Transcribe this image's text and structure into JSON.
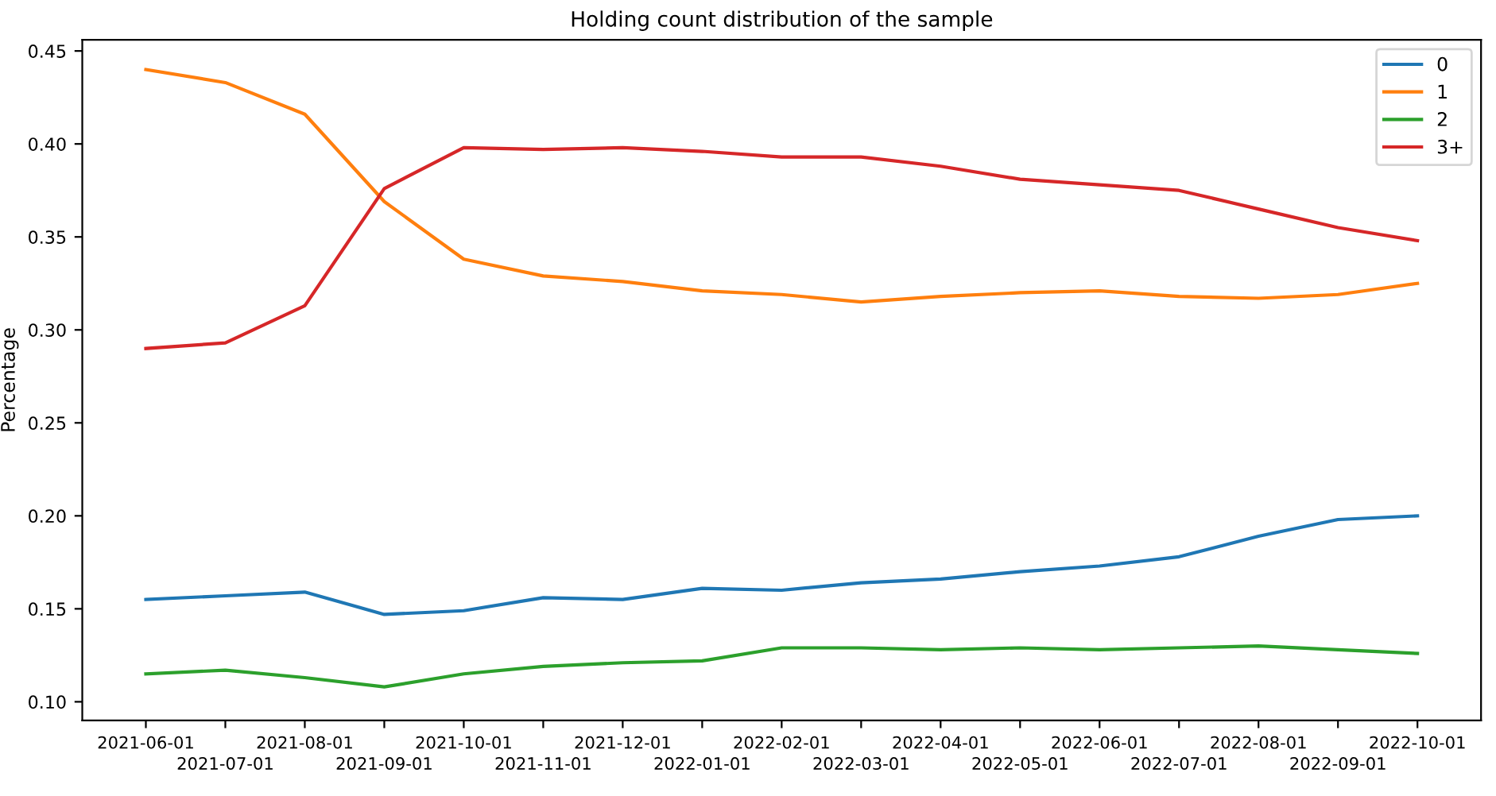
{
  "chart_data": {
    "type": "line",
    "title": "Holding count distribution of the sample",
    "ylabel": "Percentage",
    "categories": [
      "2021-06-01",
      "2021-07-01",
      "2021-08-01",
      "2021-09-01",
      "2021-10-01",
      "2021-11-01",
      "2021-12-01",
      "2022-01-01",
      "2022-02-01",
      "2022-03-01",
      "2022-04-01",
      "2022-05-01",
      "2022-06-01",
      "2022-07-01",
      "2022-08-01",
      "2022-09-01",
      "2022-10-01"
    ],
    "series": [
      {
        "name": "0",
        "color": "#1f77b4",
        "values": [
          0.155,
          0.157,
          0.159,
          0.147,
          0.149,
          0.156,
          0.155,
          0.161,
          0.16,
          0.164,
          0.166,
          0.17,
          0.173,
          0.178,
          0.189,
          0.198,
          0.2
        ]
      },
      {
        "name": "1",
        "color": "#ff7f0e",
        "values": [
          0.44,
          0.433,
          0.416,
          0.369,
          0.338,
          0.329,
          0.326,
          0.321,
          0.319,
          0.315,
          0.318,
          0.32,
          0.321,
          0.318,
          0.317,
          0.319,
          0.325
        ]
      },
      {
        "name": "2",
        "color": "#2ca02c",
        "values": [
          0.115,
          0.117,
          0.113,
          0.108,
          0.115,
          0.119,
          0.121,
          0.122,
          0.129,
          0.129,
          0.128,
          0.129,
          0.128,
          0.129,
          0.13,
          0.128,
          0.126
        ]
      },
      {
        "name": "3+",
        "color": "#d62728",
        "values": [
          0.29,
          0.293,
          0.313,
          0.376,
          0.398,
          0.397,
          0.398,
          0.396,
          0.393,
          0.393,
          0.388,
          0.381,
          0.378,
          0.375,
          0.365,
          0.355,
          0.348
        ]
      }
    ],
    "ylim": [
      0.09,
      0.456
    ],
    "yticks": [
      {
        "value": 0.1,
        "label": "0.10"
      },
      {
        "value": 0.15,
        "label": "0.15"
      },
      {
        "value": 0.2,
        "label": "0.20"
      },
      {
        "value": 0.25,
        "label": "0.25"
      },
      {
        "value": 0.3,
        "label": "0.30"
      },
      {
        "value": 0.35,
        "label": "0.35"
      },
      {
        "value": 0.4,
        "label": "0.40"
      },
      {
        "value": 0.45,
        "label": "0.45"
      }
    ],
    "legend": "top right",
    "grid": false
  }
}
